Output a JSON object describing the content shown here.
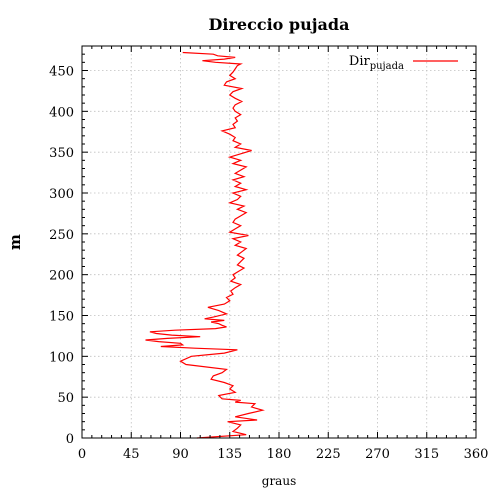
{
  "chart_data": {
    "type": "line",
    "title": "Direccio pujada",
    "xlabel": "graus",
    "ylabel": "m",
    "xlim": [
      0,
      360
    ],
    "ylim": [
      0,
      480
    ],
    "xticks": [
      0,
      45,
      90,
      135,
      180,
      225,
      270,
      315,
      360
    ],
    "yticks": [
      0,
      50,
      100,
      150,
      200,
      250,
      300,
      350,
      400,
      450
    ],
    "grid": true,
    "legend_position": "top-right",
    "series": [
      {
        "name_main": "Dir",
        "name_sub": "pujada",
        "color": "#ff0000",
        "x": [
          105,
          150,
          138,
          142,
          145,
          133,
          160,
          140,
          152,
          165,
          155,
          158,
          140,
          145,
          128,
          125,
          140,
          135,
          138,
          130,
          118,
          120,
          128,
          132,
          95,
          90,
          100,
          130,
          142,
          103,
          72,
          92,
          90,
          70,
          58,
          78,
          108,
          82,
          68,
          62,
          85,
          122,
          132,
          128,
          125,
          118,
          130,
          112,
          120,
          132,
          125,
          115,
          130,
          135,
          132,
          138,
          136,
          140,
          145,
          136,
          140,
          138,
          143,
          148,
          142,
          145,
          148,
          142,
          146,
          150,
          140,
          145,
          138,
          152,
          135,
          140,
          145,
          138,
          140,
          145,
          150,
          142,
          148,
          135,
          142,
          145,
          138,
          150,
          140,
          145,
          138,
          148,
          140,
          145,
          150,
          138,
          145,
          135,
          145,
          155,
          140,
          145,
          138,
          140,
          135,
          128,
          140,
          138,
          142,
          140,
          145,
          140,
          138,
          140,
          146,
          140,
          135,
          138,
          146,
          130,
          132,
          140,
          135,
          138,
          140,
          142,
          145,
          122,
          110,
          130,
          140,
          124,
          120,
          92
        ],
        "y": [
          0,
          4,
          8,
          12,
          16,
          20,
          22,
          26,
          30,
          34,
          38,
          42,
          44,
          46,
          48,
          52,
          56,
          60,
          64,
          68,
          72,
          76,
          80,
          84,
          90,
          94,
          100,
          104,
          108,
          110,
          112,
          114,
          116,
          118,
          120,
          122,
          124,
          126,
          128,
          130,
          132,
          134,
          136,
          138,
          140,
          142,
          144,
          146,
          148,
          152,
          156,
          160,
          164,
          168,
          172,
          176,
          180,
          184,
          188,
          192,
          196,
          200,
          204,
          208,
          212,
          216,
          220,
          224,
          228,
          232,
          236,
          240,
          244,
          248,
          252,
          256,
          260,
          264,
          268,
          272,
          276,
          280,
          284,
          288,
          292,
          296,
          300,
          304,
          308,
          312,
          316,
          320,
          324,
          328,
          332,
          336,
          340,
          344,
          348,
          352,
          356,
          360,
          364,
          368,
          372,
          376,
          380,
          384,
          388,
          392,
          396,
          400,
          404,
          408,
          412,
          416,
          420,
          424,
          428,
          432,
          436,
          440,
          444,
          448,
          452,
          456,
          458,
          460,
          462,
          464,
          466,
          468,
          470,
          472
        ]
      }
    ]
  }
}
